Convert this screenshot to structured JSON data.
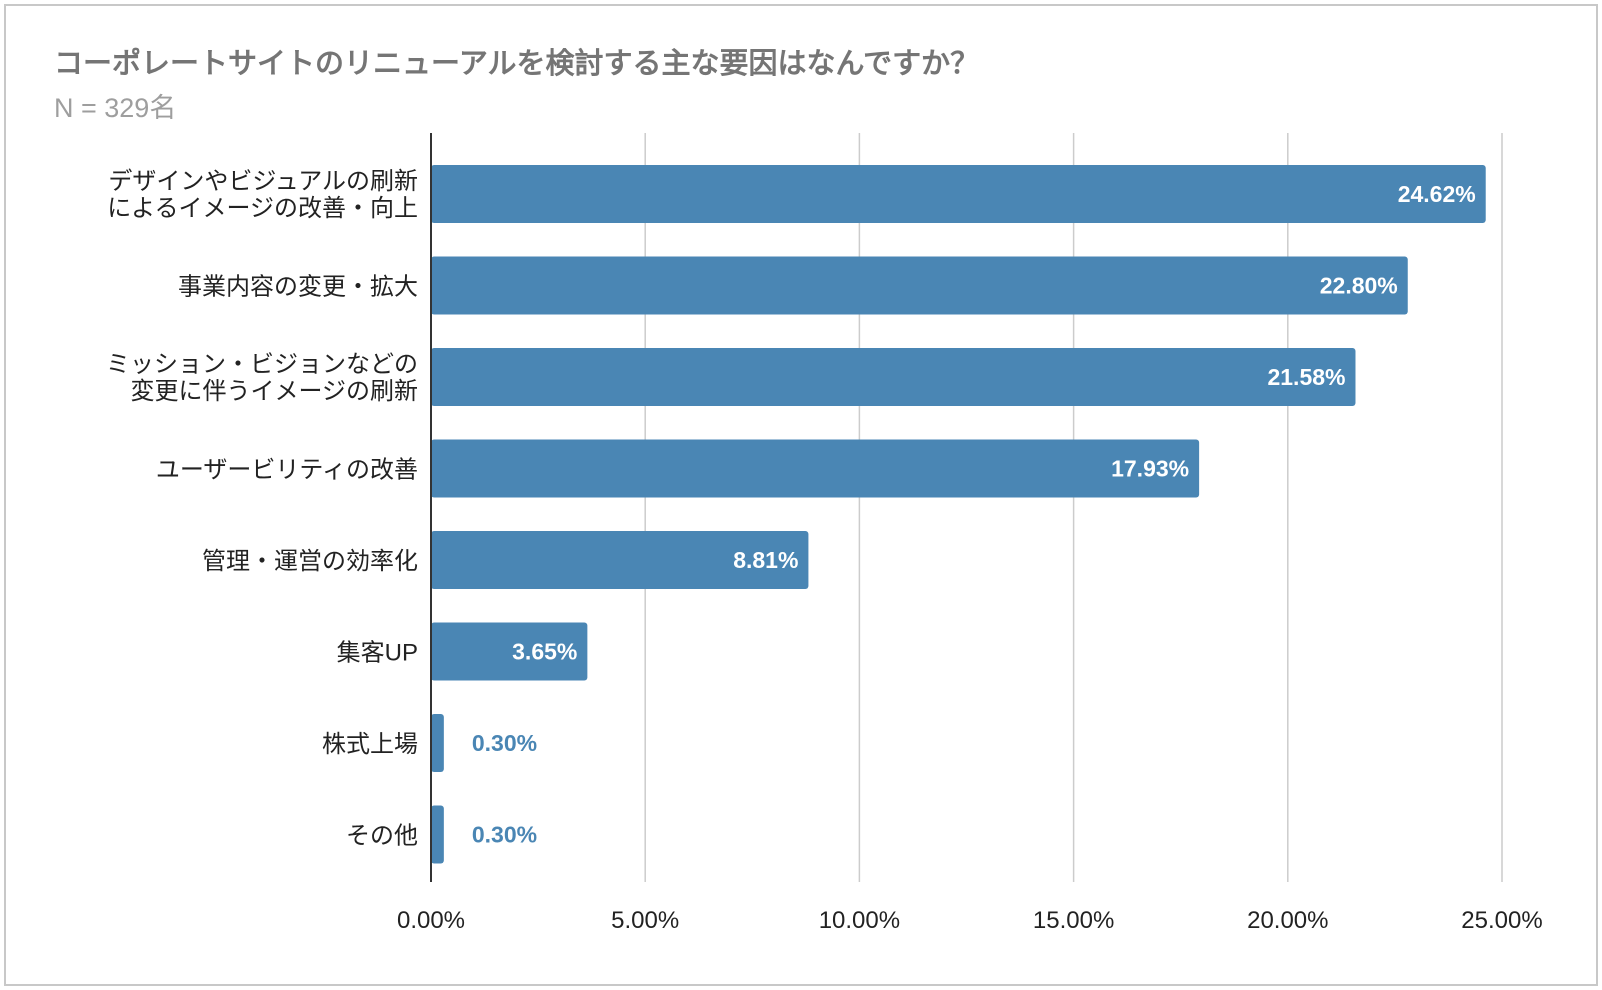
{
  "chart_data": {
    "type": "bar",
    "orientation": "horizontal",
    "title": "コーポレートサイトのリニューアルを検討する主な要因はなんですか？",
    "subtitle": "N = 329名",
    "categories": [
      [
        "デザインやビジュアルの刷新",
        "によるイメージの改善・向上"
      ],
      [
        "事業内容の変更・拡大"
      ],
      [
        "ミッション・ビジョンなどの",
        "変更に伴うイメージの刷新"
      ],
      [
        "ユーザービリティの改善"
      ],
      [
        "管理・運営の効率化"
      ],
      [
        "集客UP"
      ],
      [
        "株式上場"
      ],
      [
        "その他"
      ]
    ],
    "values": [
      24.62,
      22.8,
      21.58,
      17.93,
      8.81,
      3.65,
      0.3,
      0.3
    ],
    "data_labels": [
      "24.62%",
      "22.80%",
      "21.58%",
      "17.93%",
      "8.81%",
      "3.65%",
      "0.30%",
      "0.30%"
    ],
    "xlim": [
      0,
      25
    ],
    "xticks": [
      "0.00%",
      "5.00%",
      "10.00%",
      "15.00%",
      "20.00%",
      "25.00%"
    ],
    "grid": true,
    "bar_color": "#4a86b4",
    "label_color_outside": "#4a86b4"
  }
}
